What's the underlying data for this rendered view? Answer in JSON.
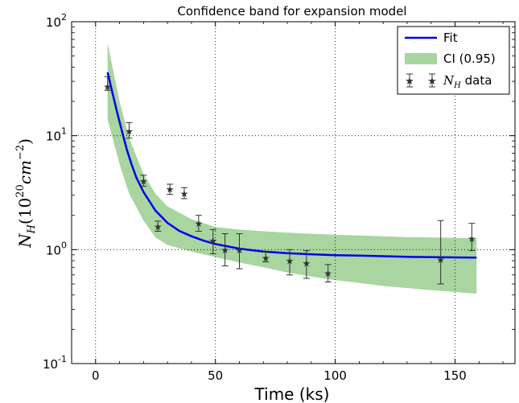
{
  "chart_data": {
    "type": "line",
    "title": "Confidence band for expansion model",
    "xlabel": "Time (ks)",
    "ylabel": {
      "base": "N",
      "sub": "H",
      "paren_open": "(10",
      "exp": "20",
      "unit": "cm",
      "unit_exp": "−2",
      "paren_close": ")"
    },
    "xlim": [
      -10,
      175
    ],
    "ylim": [
      0.1,
      100
    ],
    "yscale": "log",
    "grid": true,
    "legend_position": "top-right",
    "x_ticks": [
      {
        "value": 0,
        "label": "0"
      },
      {
        "value": 50,
        "label": "50"
      },
      {
        "value": 100,
        "label": "100"
      },
      {
        "value": 150,
        "label": "150"
      }
    ],
    "y_ticks": [
      {
        "value": 0.1,
        "base": "10",
        "exp": "-1"
      },
      {
        "value": 1,
        "base": "10",
        "exp": "0"
      },
      {
        "value": 10,
        "base": "10",
        "exp": "1"
      },
      {
        "value": 100,
        "base": "10",
        "exp": "2"
      }
    ],
    "legend": [
      {
        "label": "Fit",
        "kind": "line",
        "color": "#0000ee"
      },
      {
        "label": "CI (0.95)",
        "kind": "band",
        "color": "#a8d5a0"
      },
      {
        "label_base": "N",
        "label_sub": "H",
        "label_rest": " data",
        "kind": "errorbar",
        "color": "#333333"
      }
    ],
    "series": [
      {
        "name": "Fit",
        "kind": "line",
        "color": "#0000ee",
        "x": [
          5,
          7,
          9,
          11,
          13,
          15,
          17,
          20,
          25,
          30,
          35,
          40,
          45,
          50,
          60,
          70,
          80,
          90,
          100,
          110,
          120,
          130,
          140,
          150,
          159
        ],
        "y": [
          36,
          24,
          16,
          11,
          7.6,
          5.6,
          4.3,
          3.2,
          2.2,
          1.72,
          1.46,
          1.31,
          1.2,
          1.12,
          1.02,
          0.96,
          0.93,
          0.91,
          0.895,
          0.885,
          0.875,
          0.865,
          0.86,
          0.855,
          0.85
        ]
      },
      {
        "name": "CI (0.95)",
        "kind": "band",
        "color": "#a8d5a0",
        "x": [
          5,
          10,
          14,
          20,
          25,
          30,
          40,
          50,
          60,
          70,
          80,
          90,
          100,
          110,
          120,
          130,
          140,
          150,
          159
        ],
        "y_upper": [
          65,
          20,
          9.5,
          4.6,
          3.1,
          2.4,
          1.85,
          1.58,
          1.5,
          1.45,
          1.41,
          1.38,
          1.35,
          1.33,
          1.31,
          1.29,
          1.28,
          1.27,
          1.26
        ],
        "y_lower": [
          14,
          5.6,
          3.1,
          1.8,
          1.28,
          1.1,
          0.96,
          0.86,
          0.77,
          0.7,
          0.63,
          0.58,
          0.54,
          0.51,
          0.48,
          0.46,
          0.44,
          0.425,
          0.41
        ]
      },
      {
        "name": "N_H data",
        "kind": "errorbar",
        "color": "#333333",
        "points": [
          {
            "x": 5,
            "y": 27,
            "yerr_low": 25,
            "yerr_high": 33
          },
          {
            "x": 14,
            "y": 11,
            "yerr_low": 9.5,
            "yerr_high": 13
          },
          {
            "x": 20,
            "y": 4.0,
            "yerr_low": 3.6,
            "yerr_high": 4.5
          },
          {
            "x": 26,
            "y": 1.6,
            "yerr_low": 1.45,
            "yerr_high": 1.78
          },
          {
            "x": 31,
            "y": 3.4,
            "yerr_low": 3.05,
            "yerr_high": 3.75
          },
          {
            "x": 37,
            "y": 3.1,
            "yerr_low": 2.8,
            "yerr_high": 3.5
          },
          {
            "x": 43,
            "y": 1.7,
            "yerr_low": 1.45,
            "yerr_high": 2.0
          },
          {
            "x": 49,
            "y": 1.2,
            "yerr_low": 0.92,
            "yerr_high": 1.5
          },
          {
            "x": 54,
            "y": 1.0,
            "yerr_low": 0.72,
            "yerr_high": 1.38
          },
          {
            "x": 60,
            "y": 1.0,
            "yerr_low": 0.68,
            "yerr_high": 1.38
          },
          {
            "x": 71,
            "y": 0.85,
            "yerr_low": 0.78,
            "yerr_high": 0.95
          },
          {
            "x": 81,
            "y": 0.8,
            "yerr_low": 0.6,
            "yerr_high": 1.0
          },
          {
            "x": 88,
            "y": 0.76,
            "yerr_low": 0.56,
            "yerr_high": 0.98
          },
          {
            "x": 97,
            "y": 0.62,
            "yerr_low": 0.52,
            "yerr_high": 0.74
          },
          {
            "x": 144,
            "y": 0.82,
            "yerr_low": 0.5,
            "yerr_high": 1.8
          },
          {
            "x": 157,
            "y": 1.25,
            "yerr_low": 0.98,
            "yerr_high": 1.7
          }
        ]
      }
    ]
  }
}
